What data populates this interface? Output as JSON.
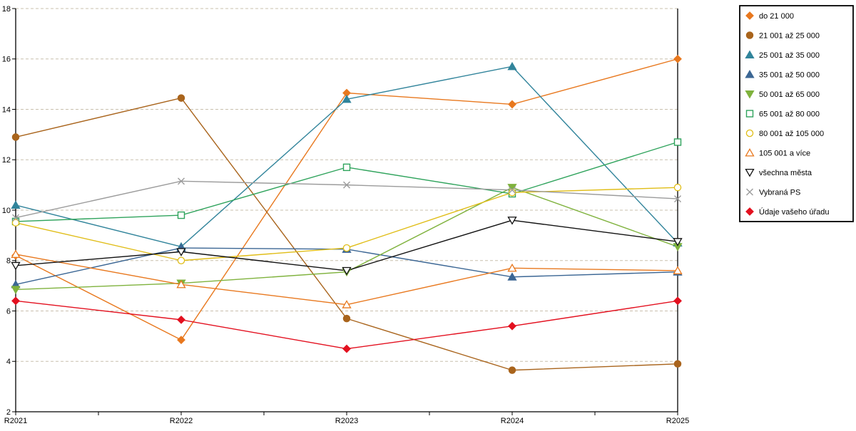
{
  "chart_data": {
    "type": "line",
    "title": "",
    "xlabel": "",
    "ylabel": "",
    "x_categories": [
      "R2021",
      "R2022",
      "R2023",
      "R2024",
      "R2025"
    ],
    "ylim": [
      2,
      18
    ],
    "y_tick_step": 2,
    "y_ticks": [
      2,
      4,
      6,
      8,
      10,
      12,
      14,
      16,
      18
    ],
    "grid": "horizontal-dashed",
    "grid_color": "#c9c0ae",
    "axis_color": "#000000",
    "legend_position": "top-right",
    "series": [
      {
        "name": "do 21 000",
        "color": "#e8781e",
        "marker": "diamond",
        "marker_fill": "filled",
        "values": [
          8.2,
          4.85,
          14.65,
          14.2,
          16.0
        ]
      },
      {
        "name": "21 001 až 25 000",
        "color": "#a9641c",
        "marker": "circle",
        "marker_fill": "filled",
        "values": [
          12.9,
          14.45,
          5.7,
          3.65,
          3.9
        ]
      },
      {
        "name": "25 001 až 35 000",
        "color": "#31849b",
        "marker": "triangle-up",
        "marker_fill": "filled",
        "values": [
          10.2,
          8.55,
          14.4,
          15.7,
          8.7
        ]
      },
      {
        "name": "35 001 až 50 000",
        "color": "#3b6694",
        "marker": "triangle-up",
        "marker_fill": "filled",
        "values": [
          7.05,
          8.5,
          8.45,
          7.35,
          7.55
        ]
      },
      {
        "name": "50 001 až 65 000",
        "color": "#7fb23d",
        "marker": "triangle-down",
        "marker_fill": "filled",
        "values": [
          6.85,
          7.1,
          7.55,
          10.9,
          8.55
        ]
      },
      {
        "name": "65 001 až 80 000",
        "color": "#2fa35c",
        "marker": "square",
        "marker_fill": "open",
        "values": [
          9.55,
          9.8,
          11.7,
          10.65,
          12.7
        ]
      },
      {
        "name": "80 001 až 105 000",
        "color": "#e0bd17",
        "marker": "circle",
        "marker_fill": "open",
        "values": [
          9.5,
          8.0,
          8.5,
          10.7,
          10.9
        ]
      },
      {
        "name": "105 001 a více",
        "color": "#e8781e",
        "marker": "triangle-up",
        "marker_fill": "open",
        "values": [
          8.25,
          7.05,
          6.25,
          7.7,
          7.6
        ]
      },
      {
        "name": "všechna města",
        "color": "#111111",
        "marker": "triangle-down",
        "marker_fill": "open",
        "values": [
          7.8,
          8.35,
          7.6,
          9.6,
          8.75
        ]
      },
      {
        "name": "Vybraná PS",
        "color": "#9b9b9b",
        "marker": "x-cross",
        "marker_fill": "none",
        "values": [
          9.7,
          11.15,
          11.0,
          10.8,
          10.45
        ]
      },
      {
        "name": "Údaje vašeho úřadu",
        "color": "#e3101f",
        "marker": "diamond",
        "marker_fill": "filled",
        "values": [
          6.4,
          5.65,
          4.5,
          5.4,
          6.4
        ]
      }
    ]
  }
}
